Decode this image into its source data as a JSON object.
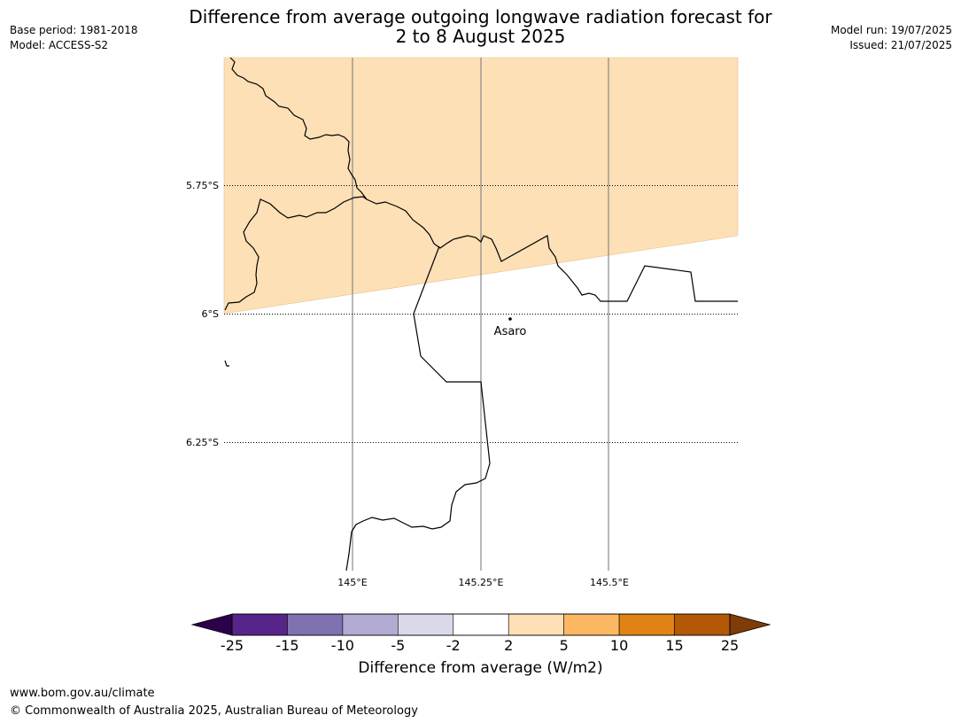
{
  "header": {
    "base_period": "Base period: 1981-2018",
    "model": "Model: ACCESS-S2",
    "model_run": "Model run: 19/07/2025",
    "issued": "Issued: 21/07/2025",
    "title_line1": "Difference from average outgoing longwave radiation forecast for",
    "title_line2": "2 to 8 August 2025"
  },
  "map": {
    "lat_labels": [
      "5.75°S",
      "6°S",
      "6.25°S"
    ],
    "lon_labels": [
      "145°E",
      "145.25°E",
      "145.5°E"
    ],
    "place": {
      "name": "Asaro",
      "lat": -6.01,
      "lon": 145.306
    },
    "shaded_category": "2 to 5",
    "shaded_color": "#fde0b6"
  },
  "colorbar": {
    "title": "Difference from average (W/m2)",
    "tick_labels": [
      "-25",
      "-15",
      "-10",
      "-5",
      "-2",
      "2",
      "5",
      "10",
      "15",
      "25"
    ],
    "colors": [
      "#572489",
      "#8071b0",
      "#b2aad2",
      "#d9d9ea",
      "#ffffff",
      "#fde0b6",
      "#fbb762",
      "#e08314",
      "#b35806"
    ],
    "low_extend_color": "#2d004b",
    "high_extend_color": "#7f3b08"
  },
  "footer": {
    "url": "www.bom.gov.au/climate",
    "copyright": "© Commonwealth of Australia 2025, Australian Bureau of Meteorology"
  }
}
